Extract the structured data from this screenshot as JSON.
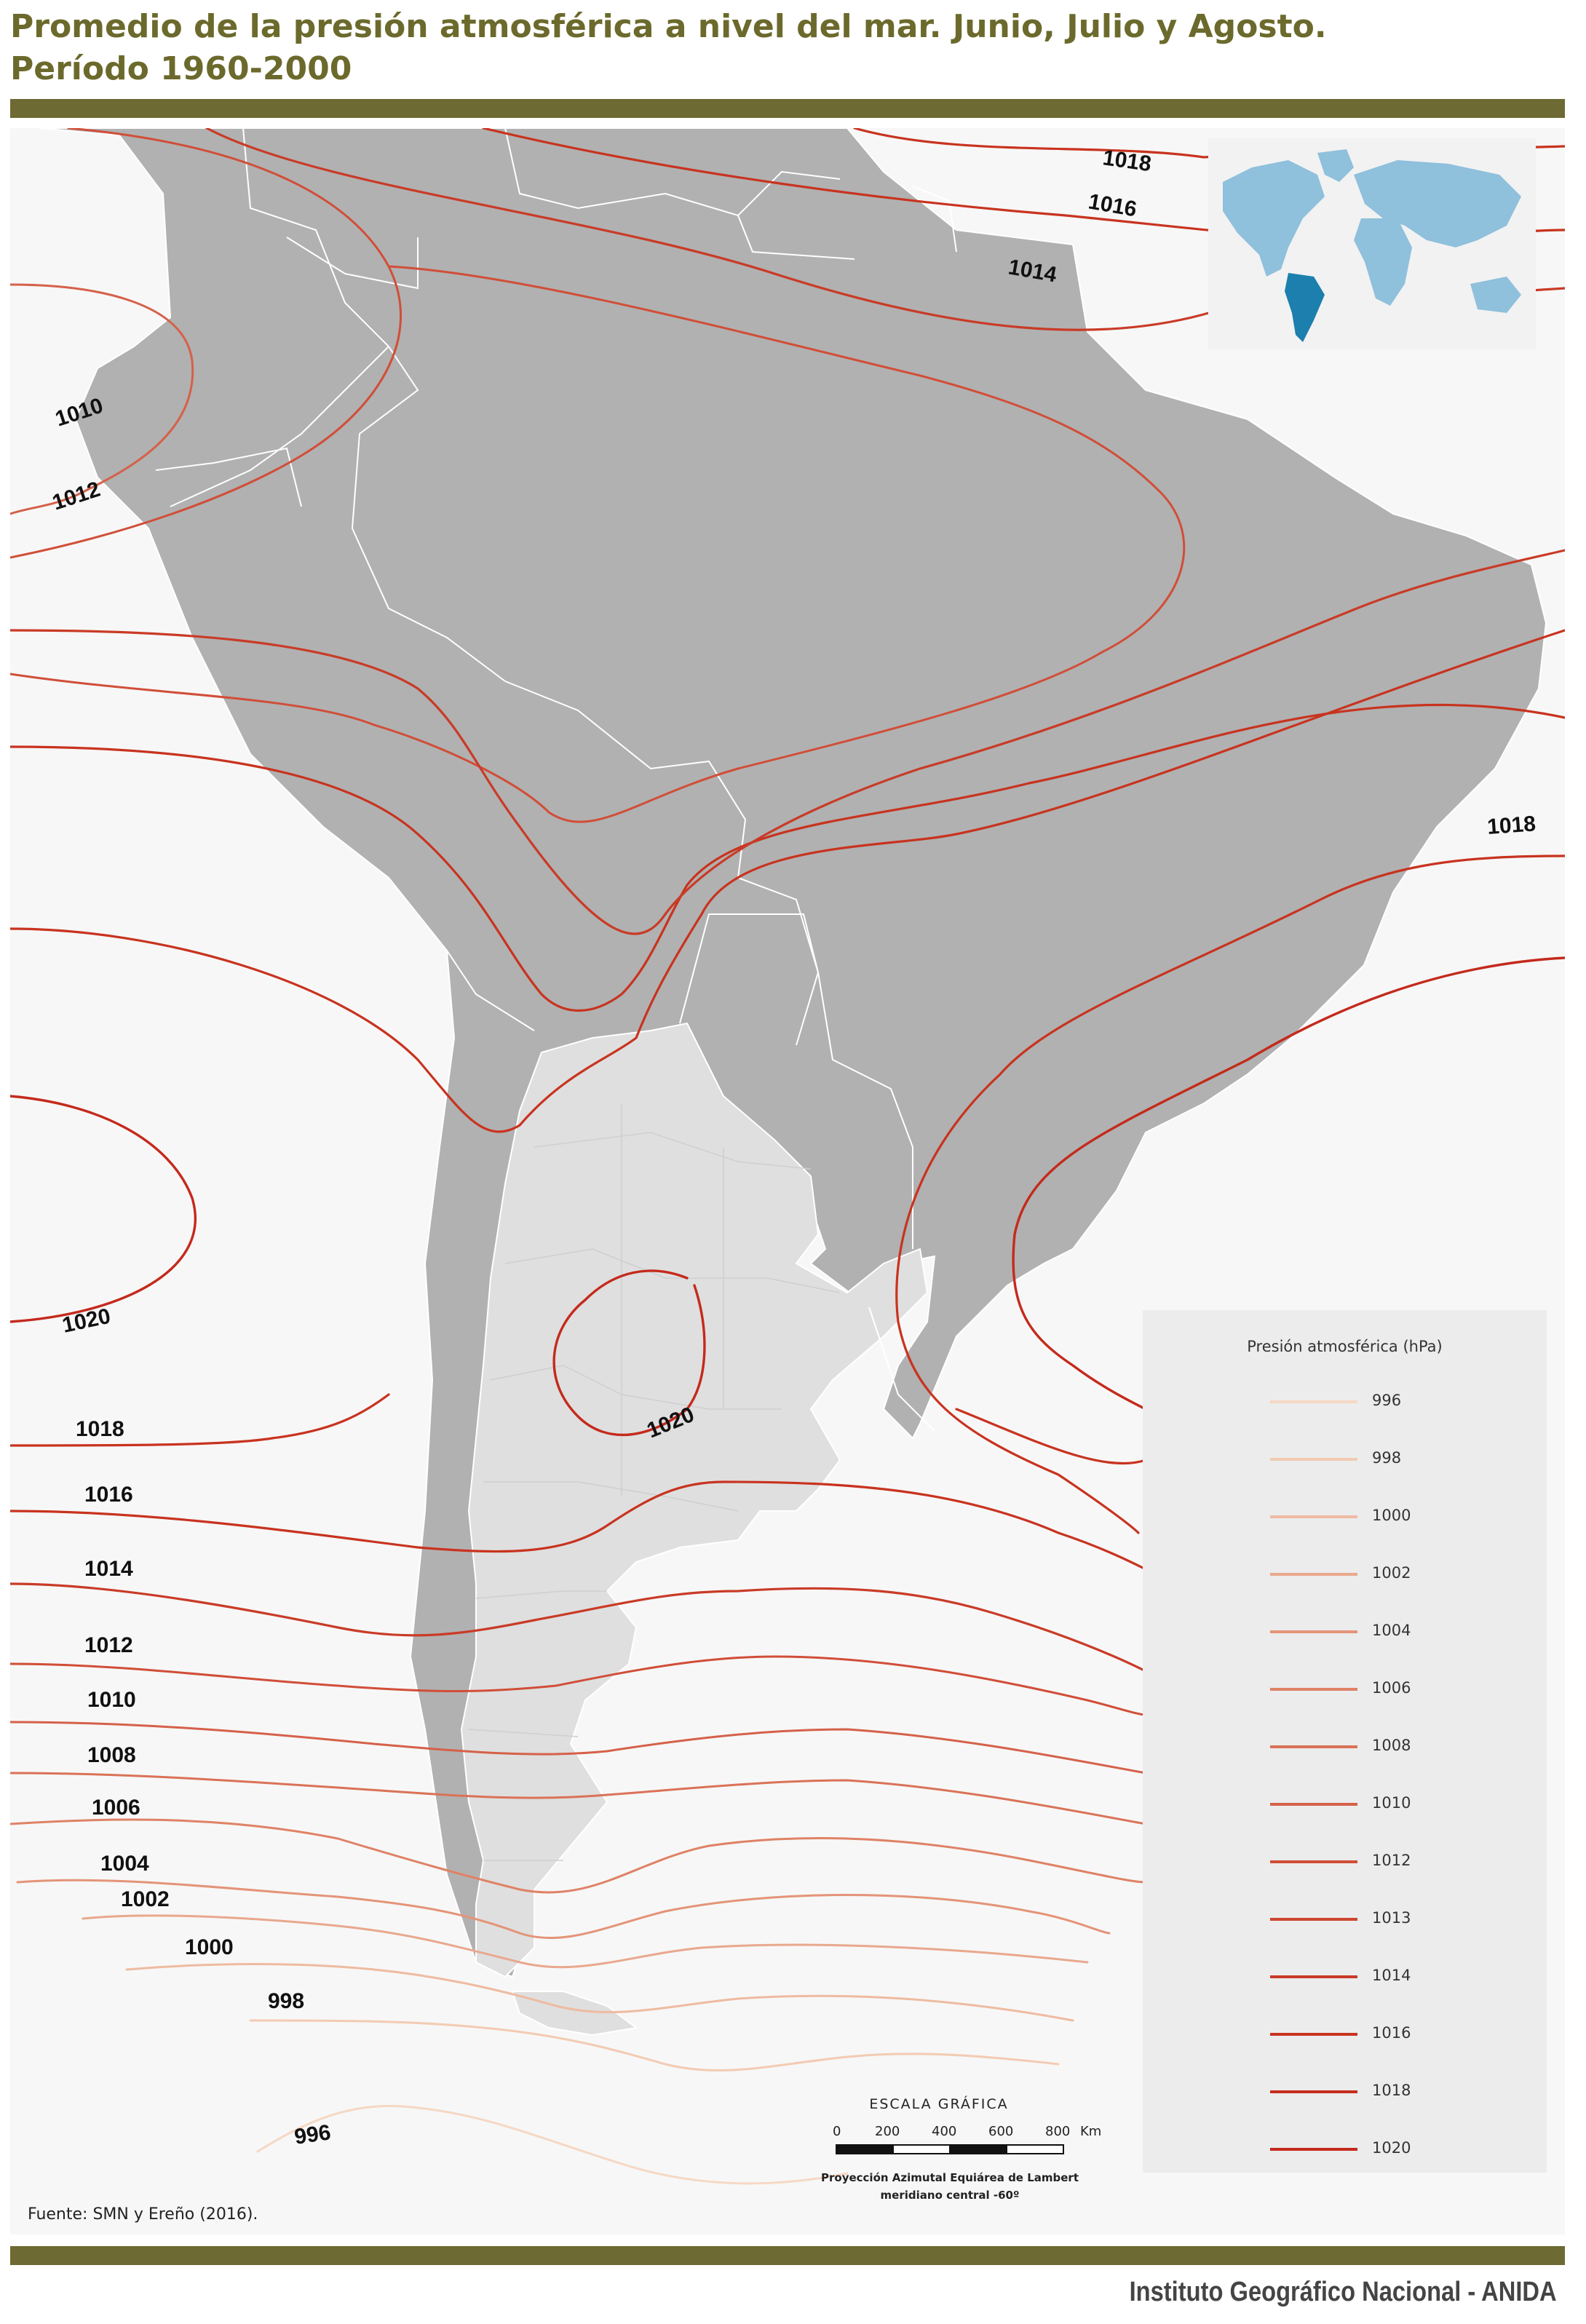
{
  "title": {
    "line1": "Promedio de la presión atmosférica a nivel del mar. Junio, Julio y Agosto.",
    "line2": "Período 1960-2000"
  },
  "colors": {
    "title": "#6b6a2c",
    "rule": "#6d6a33",
    "land": "#b1b1b1",
    "argentina": "#dfdfdf",
    "sea": "#f7f7f7",
    "inset_land": "#8fc0dc",
    "inset_highlight": "#1c7fae"
  },
  "isobars": [
    {
      "label": "1018",
      "color": "#c8331f"
    },
    {
      "label": "1016",
      "color": "#c8331f"
    },
    {
      "label": "1014",
      "color": "#c93b27"
    },
    {
      "label": "1010",
      "color": "#d5614a"
    },
    {
      "label": "1012",
      "color": "#d14e38"
    },
    {
      "label": "1020",
      "color": "#c42a1c"
    },
    {
      "label": "1018",
      "color": "#c8331f"
    },
    {
      "label": "1016",
      "color": "#c8331f"
    },
    {
      "label": "1014",
      "color": "#c93b27"
    },
    {
      "label": "1012",
      "color": "#d14e38"
    },
    {
      "label": "1010",
      "color": "#d5614a"
    },
    {
      "label": "1008",
      "color": "#da7258"
    },
    {
      "label": "1006",
      "color": "#df8266"
    },
    {
      "label": "1004",
      "color": "#e49478"
    },
    {
      "label": "1002",
      "color": "#e9a88e"
    },
    {
      "label": "1000",
      "color": "#eebba1"
    },
    {
      "label": "998",
      "color": "#f2cbb3"
    },
    {
      "label": "996",
      "color": "#f5d8c4"
    },
    {
      "label": "1020",
      "color": "#c42a1c"
    },
    {
      "label": "1018",
      "color": "#c8331f"
    }
  ],
  "legend": {
    "title": "Presión atmosférica (hPa)",
    "items": [
      {
        "label": "996",
        "color": "#f5d8c4"
      },
      {
        "label": "998",
        "color": "#f2cbb3"
      },
      {
        "label": "1000",
        "color": "#eebba1"
      },
      {
        "label": "1002",
        "color": "#e9a88e"
      },
      {
        "label": "1004",
        "color": "#e49478"
      },
      {
        "label": "1006",
        "color": "#df8266"
      },
      {
        "label": "1008",
        "color": "#da7258"
      },
      {
        "label": "1010",
        "color": "#d5614a"
      },
      {
        "label": "1012",
        "color": "#d14e38"
      },
      {
        "label": "1013",
        "color": "#cd4630"
      },
      {
        "label": "1014",
        "color": "#c93b27"
      },
      {
        "label": "1016",
        "color": "#c8331f"
      },
      {
        "label": "1018",
        "color": "#c52e1d"
      },
      {
        "label": "1020",
        "color": "#c42a1c"
      }
    ]
  },
  "scale": {
    "title": "ESCALA GRÁFICA",
    "ticks": [
      "0",
      "200",
      "400",
      "600",
      "800"
    ],
    "unit": "Km",
    "projection_line1": "Proyección Azimutal Equiárea de Lambert",
    "projection_line2": "meridiano central -60º"
  },
  "source": "Fuente: SMN y Ereño (2016).",
  "footer": "Instituto Geográfico Nacional - ANIDA"
}
